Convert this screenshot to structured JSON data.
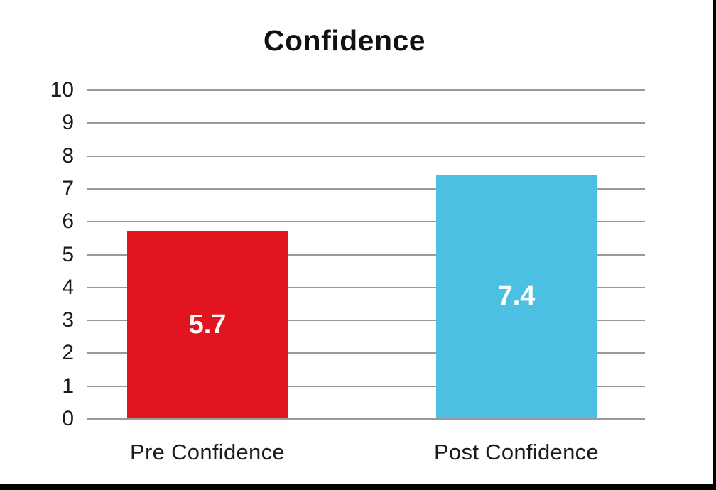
{
  "frame": {
    "border_color": "#000000",
    "background": "#ffffff"
  },
  "chart_data": {
    "type": "bar",
    "title": "Confidence",
    "xlabel": "",
    "ylabel": "",
    "categories": [
      "Pre Confidence",
      "Post Confidence"
    ],
    "values": [
      5.7,
      7.4
    ],
    "value_labels": [
      "5.7",
      "7.4"
    ],
    "bar_colors": [
      "#e2141e",
      "#4bc0e2"
    ],
    "value_label_color": "#ffffff",
    "ylim": [
      0,
      10
    ],
    "ytick_labels": [
      "0",
      "1",
      "2",
      "3",
      "4",
      "5",
      "6",
      "7",
      "8",
      "9",
      "10"
    ],
    "grid": true,
    "gridline_color": "#9a9a9a",
    "axis_text_color": "#1b1b1b",
    "title_color": "#111111",
    "legend_position": "none"
  }
}
